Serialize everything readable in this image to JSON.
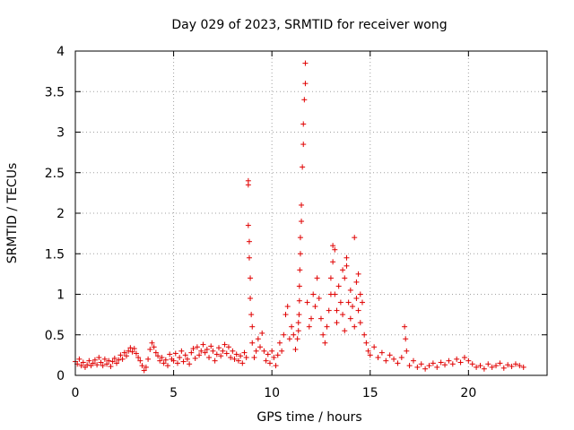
{
  "chart_data": {
    "type": "scatter",
    "title": "Day 029 of 2023, SRMTID for receiver wong",
    "xlabel": "GPS time / hours",
    "ylabel": "SRMTID / TECUs",
    "xlim": [
      0,
      24
    ],
    "ylim": [
      0,
      4
    ],
    "xticks": [
      0,
      5,
      10,
      15,
      20
    ],
    "yticks": [
      0,
      0.5,
      1,
      1.5,
      2,
      2.5,
      3,
      3.5,
      4
    ],
    "xtick_labels": [
      "0",
      "5",
      "10",
      "15",
      "20"
    ],
    "ytick_labels": [
      "0",
      "0.5",
      "1",
      "1.5",
      "2",
      "2.5",
      "3",
      "3.5",
      "4"
    ],
    "grid": true,
    "marker": "+",
    "color": "#e00000",
    "series": [
      {
        "name": "SRMTID",
        "x": [
          0.0,
          0.1,
          0.2,
          0.3,
          0.4,
          0.5,
          0.6,
          0.7,
          0.8,
          0.9,
          1.0,
          1.1,
          1.2,
          1.3,
          1.4,
          1.5,
          1.6,
          1.7,
          1.8,
          1.9,
          2.0,
          2.1,
          2.2,
          2.3,
          2.4,
          2.5,
          2.6,
          2.7,
          2.8,
          2.9,
          3.0,
          3.1,
          3.2,
          3.3,
          3.4,
          3.5,
          3.6,
          3.7,
          3.8,
          3.9,
          4.0,
          4.1,
          4.2,
          4.3,
          4.4,
          4.5,
          4.6,
          4.7,
          4.8,
          4.9,
          5.0,
          5.1,
          5.2,
          5.3,
          5.4,
          5.5,
          5.6,
          5.7,
          5.8,
          5.9,
          6.0,
          6.1,
          6.2,
          6.3,
          6.4,
          6.5,
          6.6,
          6.7,
          6.8,
          6.9,
          7.0,
          7.1,
          7.2,
          7.3,
          7.4,
          7.5,
          7.6,
          7.7,
          7.8,
          7.9,
          8.0,
          8.1,
          8.2,
          8.3,
          8.4,
          8.5,
          8.6,
          8.7,
          8.8,
          8.8,
          8.8,
          8.85,
          8.85,
          8.9,
          8.9,
          8.95,
          9.0,
          9.0,
          9.1,
          9.2,
          9.3,
          9.4,
          9.5,
          9.6,
          9.7,
          9.8,
          9.9,
          10.0,
          10.1,
          10.2,
          10.3,
          10.4,
          10.5,
          10.6,
          10.7,
          10.8,
          10.9,
          11.0,
          11.1,
          11.2,
          11.3,
          11.35,
          11.35,
          11.38,
          11.4,
          11.4,
          11.42,
          11.45,
          11.45,
          11.5,
          11.5,
          11.55,
          11.6,
          11.6,
          11.65,
          11.7,
          11.7,
          11.8,
          11.9,
          12.0,
          12.1,
          12.2,
          12.3,
          12.4,
          12.5,
          12.6,
          12.7,
          12.8,
          12.9,
          13.0,
          13.0,
          13.1,
          13.1,
          13.2,
          13.2,
          13.3,
          13.3,
          13.4,
          13.5,
          13.6,
          13.6,
          13.7,
          13.7,
          13.8,
          13.8,
          13.9,
          14.0,
          14.0,
          14.1,
          14.2,
          14.2,
          14.3,
          14.3,
          14.4,
          14.4,
          14.5,
          14.5,
          14.6,
          14.7,
          14.8,
          14.9,
          15.0,
          15.2,
          15.4,
          15.6,
          15.8,
          16.0,
          16.2,
          16.4,
          16.6,
          16.75,
          16.8,
          16.85,
          17.0,
          17.2,
          17.4,
          17.6,
          17.8,
          18.0,
          18.2,
          18.4,
          18.6,
          18.8,
          19.0,
          19.2,
          19.4,
          19.6,
          19.8,
          20.0,
          20.2,
          20.4,
          20.6,
          20.8,
          21.0,
          21.2,
          21.4,
          21.6,
          21.8,
          22.0,
          22.2,
          22.4,
          22.6,
          22.8
        ],
        "y": [
          0.17,
          0.14,
          0.2,
          0.12,
          0.16,
          0.1,
          0.13,
          0.18,
          0.12,
          0.15,
          0.19,
          0.13,
          0.22,
          0.16,
          0.12,
          0.2,
          0.14,
          0.18,
          0.11,
          0.17,
          0.21,
          0.15,
          0.19,
          0.25,
          0.2,
          0.28,
          0.24,
          0.3,
          0.34,
          0.29,
          0.33,
          0.27,
          0.22,
          0.18,
          0.12,
          0.06,
          0.1,
          0.2,
          0.32,
          0.4,
          0.35,
          0.28,
          0.24,
          0.18,
          0.22,
          0.15,
          0.19,
          0.12,
          0.26,
          0.2,
          0.18,
          0.27,
          0.15,
          0.22,
          0.3,
          0.17,
          0.25,
          0.2,
          0.14,
          0.28,
          0.33,
          0.21,
          0.35,
          0.25,
          0.3,
          0.38,
          0.28,
          0.32,
          0.22,
          0.36,
          0.3,
          0.18,
          0.26,
          0.34,
          0.24,
          0.3,
          0.38,
          0.27,
          0.35,
          0.22,
          0.3,
          0.2,
          0.26,
          0.18,
          0.24,
          0.15,
          0.28,
          0.22,
          2.35,
          2.4,
          1.85,
          1.65,
          1.45,
          1.2,
          0.95,
          0.75,
          0.6,
          0.4,
          0.22,
          0.3,
          0.45,
          0.35,
          0.52,
          0.3,
          0.18,
          0.26,
          0.15,
          0.3,
          0.22,
          0.12,
          0.25,
          0.4,
          0.3,
          0.5,
          0.75,
          0.85,
          0.45,
          0.6,
          0.5,
          0.32,
          0.45,
          0.55,
          0.65,
          0.75,
          0.92,
          1.1,
          1.3,
          1.5,
          1.7,
          1.9,
          2.1,
          2.57,
          2.85,
          3.1,
          3.4,
          3.6,
          3.85,
          0.9,
          0.6,
          0.7,
          1.0,
          0.85,
          1.2,
          0.95,
          0.7,
          0.5,
          0.4,
          0.6,
          0.8,
          1.0,
          1.2,
          1.4,
          1.6,
          1.55,
          1.0,
          0.8,
          0.65,
          1.1,
          0.9,
          1.3,
          0.75,
          0.55,
          1.2,
          1.45,
          1.35,
          0.9,
          0.7,
          1.05,
          0.85,
          0.6,
          1.7,
          1.15,
          0.95,
          1.25,
          0.8,
          1.0,
          0.65,
          0.9,
          0.5,
          0.4,
          0.3,
          0.25,
          0.35,
          0.22,
          0.28,
          0.18,
          0.25,
          0.2,
          0.15,
          0.22,
          0.6,
          0.45,
          0.3,
          0.12,
          0.18,
          0.1,
          0.14,
          0.08,
          0.12,
          0.15,
          0.1,
          0.16,
          0.13,
          0.18,
          0.14,
          0.2,
          0.16,
          0.22,
          0.18,
          0.14,
          0.1,
          0.12,
          0.08,
          0.14,
          0.1,
          0.12,
          0.15,
          0.09,
          0.13,
          0.11,
          0.14,
          0.12,
          0.1
        ]
      }
    ]
  }
}
